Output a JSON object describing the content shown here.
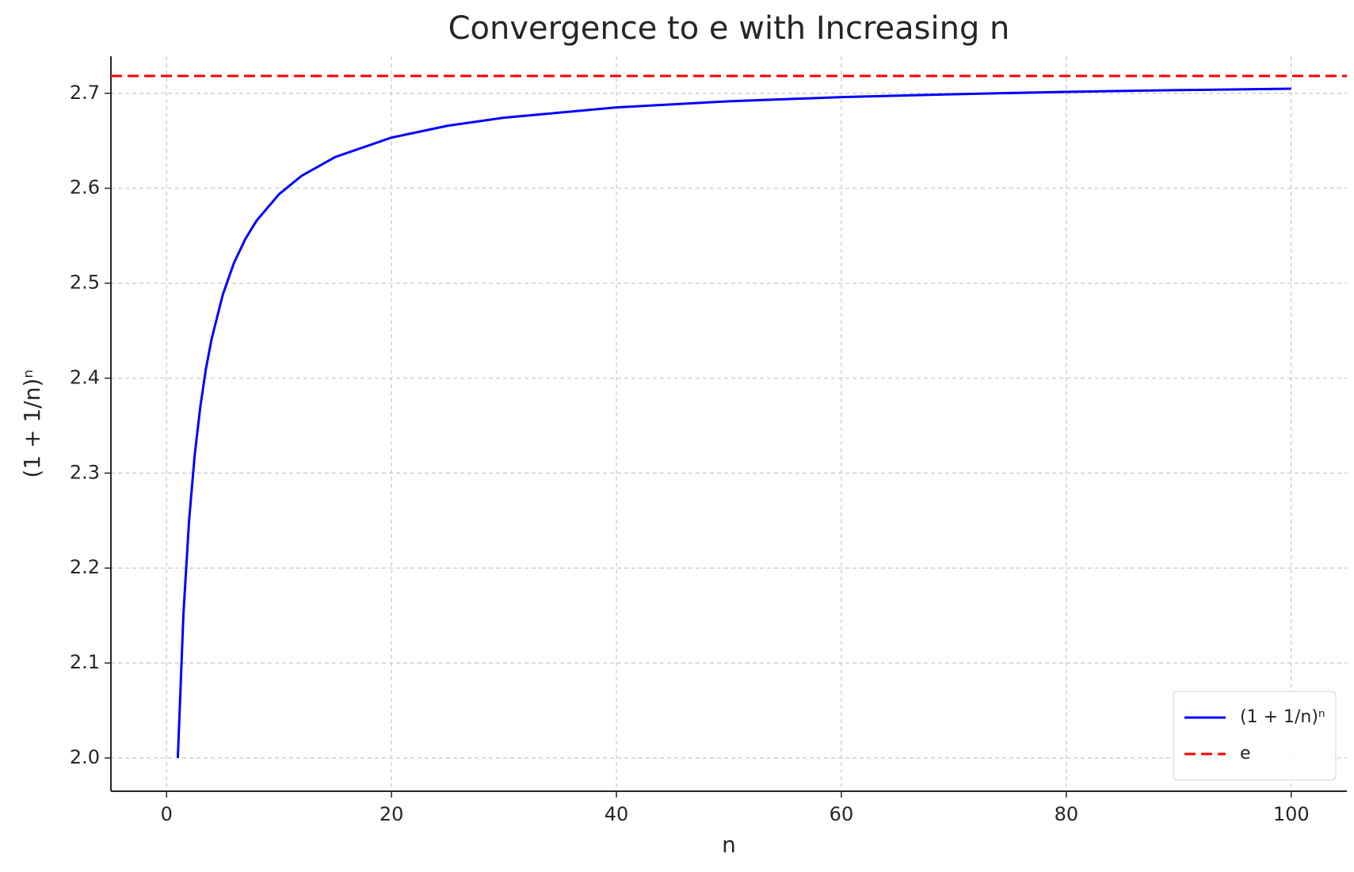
{
  "chart_data": {
    "type": "line",
    "title": "Convergence to e with Increasing n",
    "x_label": "n",
    "y_label": "(1 + 1/n)ⁿ",
    "x": [
      1,
      1.5,
      2,
      2.5,
      3,
      3.5,
      4,
      5,
      6,
      7,
      8,
      10,
      12,
      15,
      20,
      25,
      30,
      40,
      50,
      60,
      70,
      80,
      90,
      100
    ],
    "series": [
      {
        "name": "(1 + 1/n)ⁿ",
        "color": "#0000ff",
        "values": [
          2.0,
          2.152,
          2.25,
          2.319,
          2.37,
          2.41,
          2.441,
          2.488,
          2.5216,
          2.5465,
          2.5658,
          2.5937,
          2.613,
          2.6329,
          2.6533,
          2.6658,
          2.6743,
          2.6851,
          2.6916,
          2.6959,
          2.699,
          2.7015,
          2.7033,
          2.7048
        ]
      }
    ],
    "reference_line": {
      "name": "e",
      "value": 2.71828,
      "color": "#ff0000",
      "style": "dashed"
    },
    "xlim": [
      -4.95,
      104.95
    ],
    "xticks": [
      0,
      20,
      40,
      60,
      80,
      100
    ],
    "ylim": [
      1.965,
      2.739
    ],
    "yticks": [
      {
        "value": 2.0,
        "label": "2.0"
      },
      2.1,
      2.2,
      2.3,
      2.4,
      2.5,
      2.6,
      2.7
    ],
    "grid": true,
    "legend": "lower right"
  }
}
